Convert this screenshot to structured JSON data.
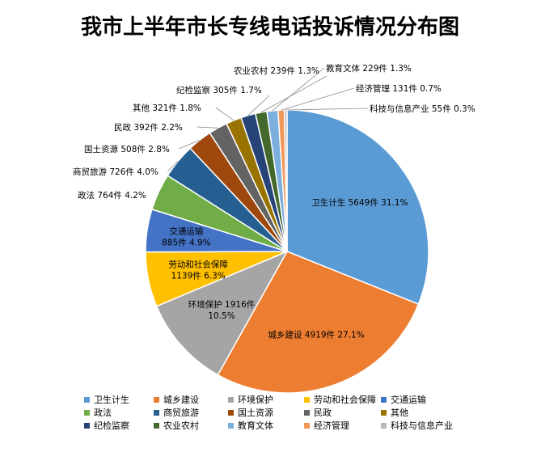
{
  "chart_data": {
    "type": "pie",
    "title": "我市上半年市长专线电话投诉情况分布图",
    "unit": "件",
    "slices": [
      {
        "name": "卫生计生",
        "value": 5649,
        "percent": "31.1%",
        "color": "#5B9BD5"
      },
      {
        "name": "城乡建设",
        "value": 4919,
        "percent": "27.1%",
        "color": "#ED7D31"
      },
      {
        "name": "环境保护",
        "value": 1916,
        "percent": "10.5%",
        "color": "#A5A5A5"
      },
      {
        "name": "劳动和社会保障",
        "value": 1139,
        "percent": "6.3%",
        "color": "#FFC000"
      },
      {
        "name": "交通运输",
        "value": 885,
        "percent": "4.9%",
        "color": "#4472C4"
      },
      {
        "name": "政法",
        "value": 764,
        "percent": "4.2%",
        "color": "#70AD47"
      },
      {
        "name": "商贸旅游",
        "value": 726,
        "percent": "4.0%",
        "color": "#255E91"
      },
      {
        "name": "国土资源",
        "value": 508,
        "percent": "2.8%",
        "color": "#9E480E"
      },
      {
        "name": "民政",
        "value": 392,
        "percent": "2.2%",
        "color": "#636363"
      },
      {
        "name": "其他",
        "value": 321,
        "percent": "1.8%",
        "color": "#997300"
      },
      {
        "name": "纪检监察",
        "value": 305,
        "percent": "1.7%",
        "color": "#264478"
      },
      {
        "name": "农业农村",
        "value": 239,
        "percent": "1.3%",
        "color": "#43682B"
      },
      {
        "name": "教育文体",
        "value": 229,
        "percent": "1.3%",
        "color": "#7CAFDD"
      },
      {
        "name": "经济管理",
        "value": 131,
        "percent": "0.7%",
        "color": "#F1975A"
      },
      {
        "name": "科技与信息产业",
        "value": 55,
        "percent": "0.3%",
        "color": "#B7B7B7"
      }
    ],
    "legend_position": "bottom"
  }
}
